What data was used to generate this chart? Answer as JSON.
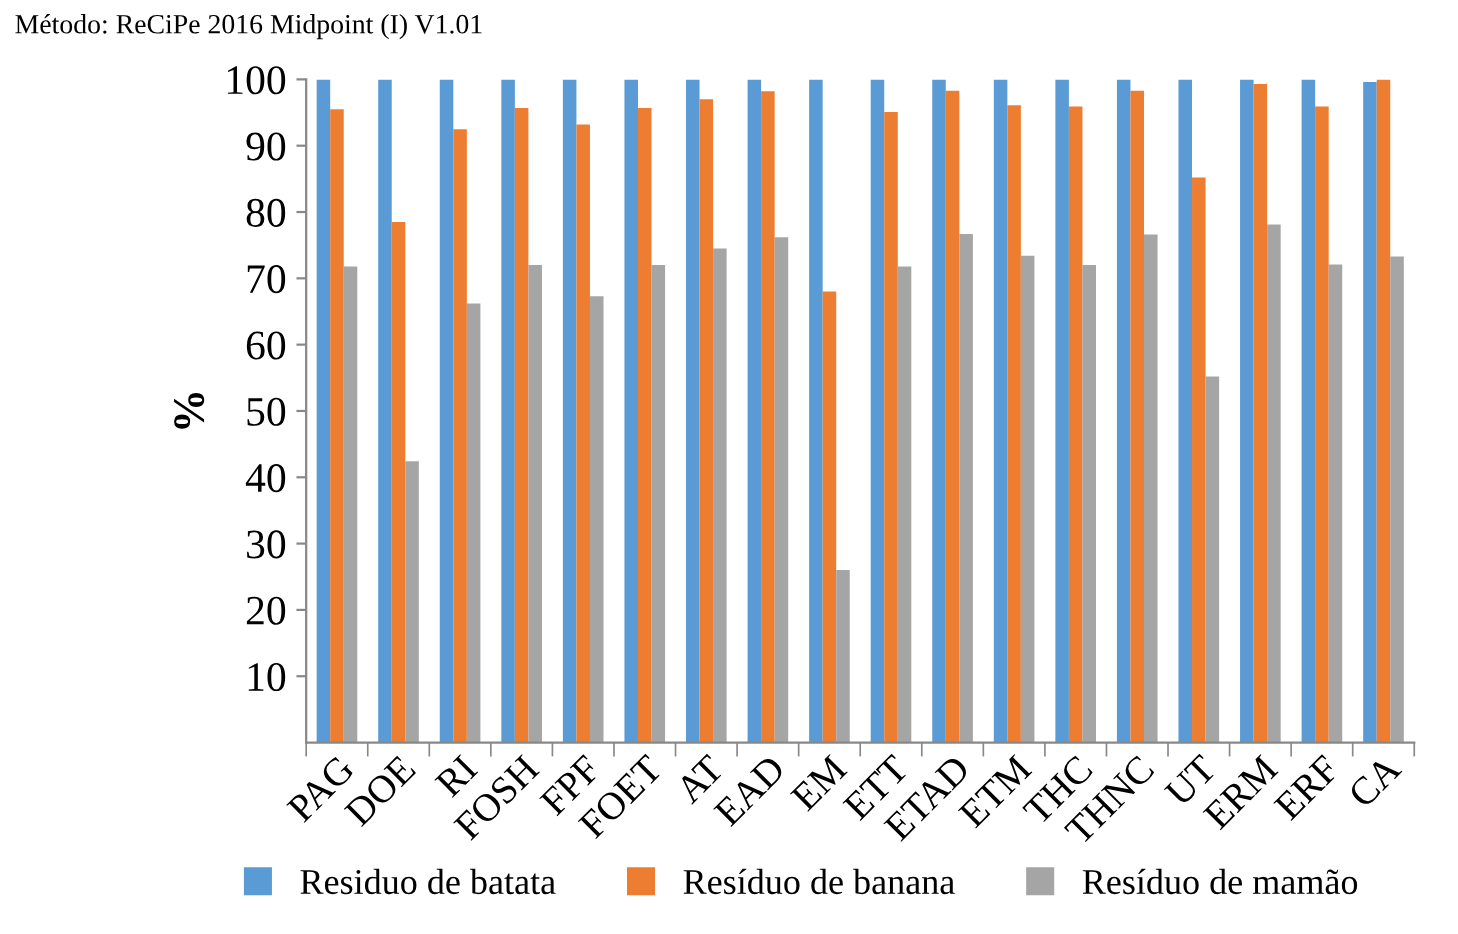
{
  "chart_data": {
    "type": "bar",
    "title": "Método: ReCiPe 2016 Midpoint (I) V1.01",
    "ylabel": "%",
    "categories": [
      "PAG",
      "DOE",
      "RI",
      "FOSH",
      "FPF",
      "FOET",
      "AT",
      "EAD",
      "EM",
      "ETT",
      "ETAD",
      "ETM",
      "THC",
      "THNC",
      "UT",
      "ERM",
      "ERF",
      "CA"
    ],
    "series": [
      {
        "name": "Residuo de batata",
        "color": "#5b9bd5",
        "values": [
          100,
          100,
          100,
          100,
          100,
          100,
          100,
          100,
          100,
          100,
          100,
          100,
          100,
          100,
          100,
          100,
          100,
          99.6
        ]
      },
      {
        "name": "Resíduo de banana",
        "color": "#ed7d31",
        "values": [
          95.5,
          78.5,
          92.5,
          95.7,
          93.2,
          95.7,
          97,
          98.2,
          68,
          95.1,
          98.3,
          96.1,
          95.9,
          98.3,
          85.2,
          99.3,
          95.9,
          100
        ]
      },
      {
        "name": "Resíduo de mamão",
        "color": "#a5a5a5",
        "values": [
          71.8,
          42.4,
          66.2,
          72,
          67.3,
          72,
          74.5,
          76.2,
          26,
          71.8,
          76.7,
          73.4,
          72,
          76.6,
          55.2,
          78.1,
          72.1,
          73.3
        ]
      }
    ],
    "ylim": [
      0,
      100
    ],
    "yticks": [
      10,
      20,
      30,
      40,
      50,
      60,
      70,
      80,
      90,
      100
    ],
    "grid": false,
    "legend": "bottom"
  }
}
